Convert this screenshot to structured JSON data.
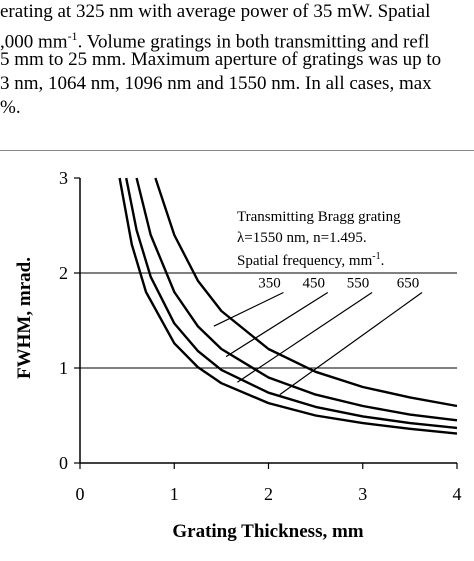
{
  "paper_text": {
    "line1": "erating at 325 nm with average power of 35 mW. Spatial",
    "line2a": ",000 mm",
    "line2sup": "-1",
    "line2b": ". Volume gratings in both transmitting and refl",
    "line3": "5 mm to 25 mm. Maximum aperture of gratings was up to",
    "line4": "3 nm, 1064 nm, 1096 nm and 1550 nm. In all cases, max",
    "line5": "%."
  },
  "figure": {
    "annotation_line1": "Transmitting Bragg grating",
    "annotation_line2": "λ=1550 nm, n=1.495.",
    "annotation_line3a": "Spatial frequency, mm",
    "annotation_line3sup": "-1",
    "annotation_line3b": "."
  },
  "chart_data": {
    "type": "line",
    "title": "",
    "xlabel": "Grating Thickness, mm",
    "ylabel": "FWHM, mrad.",
    "xlim": [
      0,
      4
    ],
    "ylim": [
      0,
      3
    ],
    "xticks": [
      "0",
      "1",
      "2",
      "3",
      "4"
    ],
    "yticks": [
      "0",
      "1",
      "2",
      "3"
    ],
    "grid": "horizontal lines at y = 1, 2",
    "series": [
      {
        "name": "350",
        "x": [
          0.49,
          0.6,
          0.75,
          1.0,
          1.25,
          1.5,
          2.0,
          2.5,
          3.0,
          3.5,
          4.0
        ],
        "y": [
          3.0,
          2.45,
          1.96,
          1.47,
          1.18,
          0.98,
          0.74,
          0.59,
          0.49,
          0.42,
          0.37
        ]
      },
      {
        "name": "450",
        "x": [
          0.6,
          0.75,
          1.0,
          1.25,
          1.5,
          2.0,
          2.5,
          3.0,
          3.5,
          4.0
        ],
        "y": [
          3.0,
          2.4,
          1.8,
          1.44,
          1.2,
          0.9,
          0.72,
          0.6,
          0.51,
          0.45
        ]
      },
      {
        "name": "550",
        "x": [
          0.8,
          1.0,
          1.25,
          1.5,
          2.0,
          2.5,
          3.0,
          3.5,
          4.0
        ],
        "y": [
          3.0,
          2.4,
          1.92,
          1.6,
          1.2,
          0.96,
          0.8,
          0.69,
          0.6
        ]
      },
      {
        "name": "650",
        "x": [
          0.42,
          0.55,
          0.7,
          1.0,
          1.25,
          1.5,
          2.0,
          2.5,
          3.0,
          3.5,
          4.0
        ],
        "y": [
          3.0,
          2.3,
          1.8,
          1.26,
          1.01,
          0.84,
          0.63,
          0.5,
          0.42,
          0.36,
          0.31
        ]
      }
    ],
    "series_labels": [
      "350",
      "450",
      "550",
      "650"
    ]
  }
}
